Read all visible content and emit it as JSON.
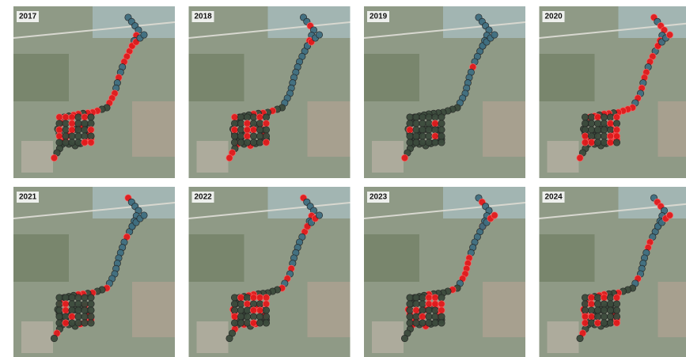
{
  "panels": [
    {
      "label": "2017"
    },
    {
      "label": "2018"
    },
    {
      "label": "2019"
    },
    {
      "label": "2020"
    },
    {
      "label": "2021"
    },
    {
      "label": "2022"
    },
    {
      "label": "2023"
    },
    {
      "label": "2024"
    }
  ]
}
